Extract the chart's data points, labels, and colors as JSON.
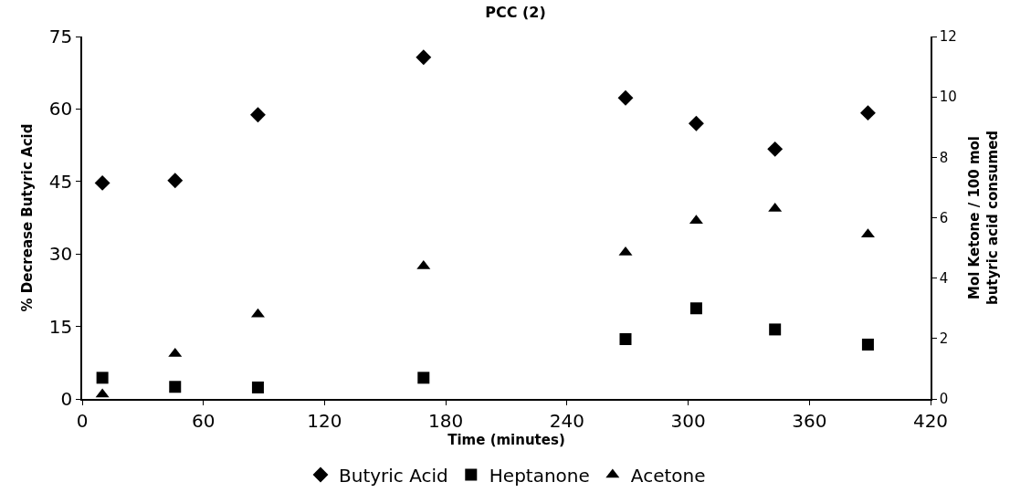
{
  "chart_data": {
    "type": "scatter",
    "title": "PCC (2)",
    "xlabel": "Time (minutes)",
    "ylabel": "% Decrease Butyric Acid",
    "y2label": "Mol Ketone / 100 mol\nbutyric acid consumed",
    "x": [
      10,
      46,
      87,
      169,
      269,
      304,
      343,
      389
    ],
    "series": [
      {
        "name": "Butyric Acid",
        "color": "#000000",
        "marker": "diamond",
        "values": [
          44.7,
          45.2,
          58.8,
          70.7,
          62.3,
          57,
          51.7,
          59.2
        ]
      },
      {
        "name": "Heptanone",
        "color": "#000000",
        "marker": "square",
        "axis": "y2",
        "values": [
          0.7,
          0.4,
          0.38,
          0.7,
          1.98,
          3.0,
          2.3,
          1.8
        ]
      },
      {
        "name": "Acetone",
        "color": "#000000",
        "marker": "triangle",
        "axis": "y2",
        "values": [
          0.15,
          1.5,
          2.8,
          4.4,
          4.85,
          5.9,
          6.3,
          5.45
        ]
      }
    ],
    "xlim": [
      0,
      420
    ],
    "xticks": [
      0,
      60,
      120,
      180,
      240,
      300,
      360,
      420
    ],
    "ylim": [
      0,
      75
    ],
    "yticks": [
      0,
      15,
      30,
      45,
      60,
      75
    ],
    "y2lim": [
      0,
      12
    ],
    "y2ticks": [
      0,
      2,
      4,
      6,
      8,
      10,
      12
    ],
    "legend": "bottom"
  }
}
